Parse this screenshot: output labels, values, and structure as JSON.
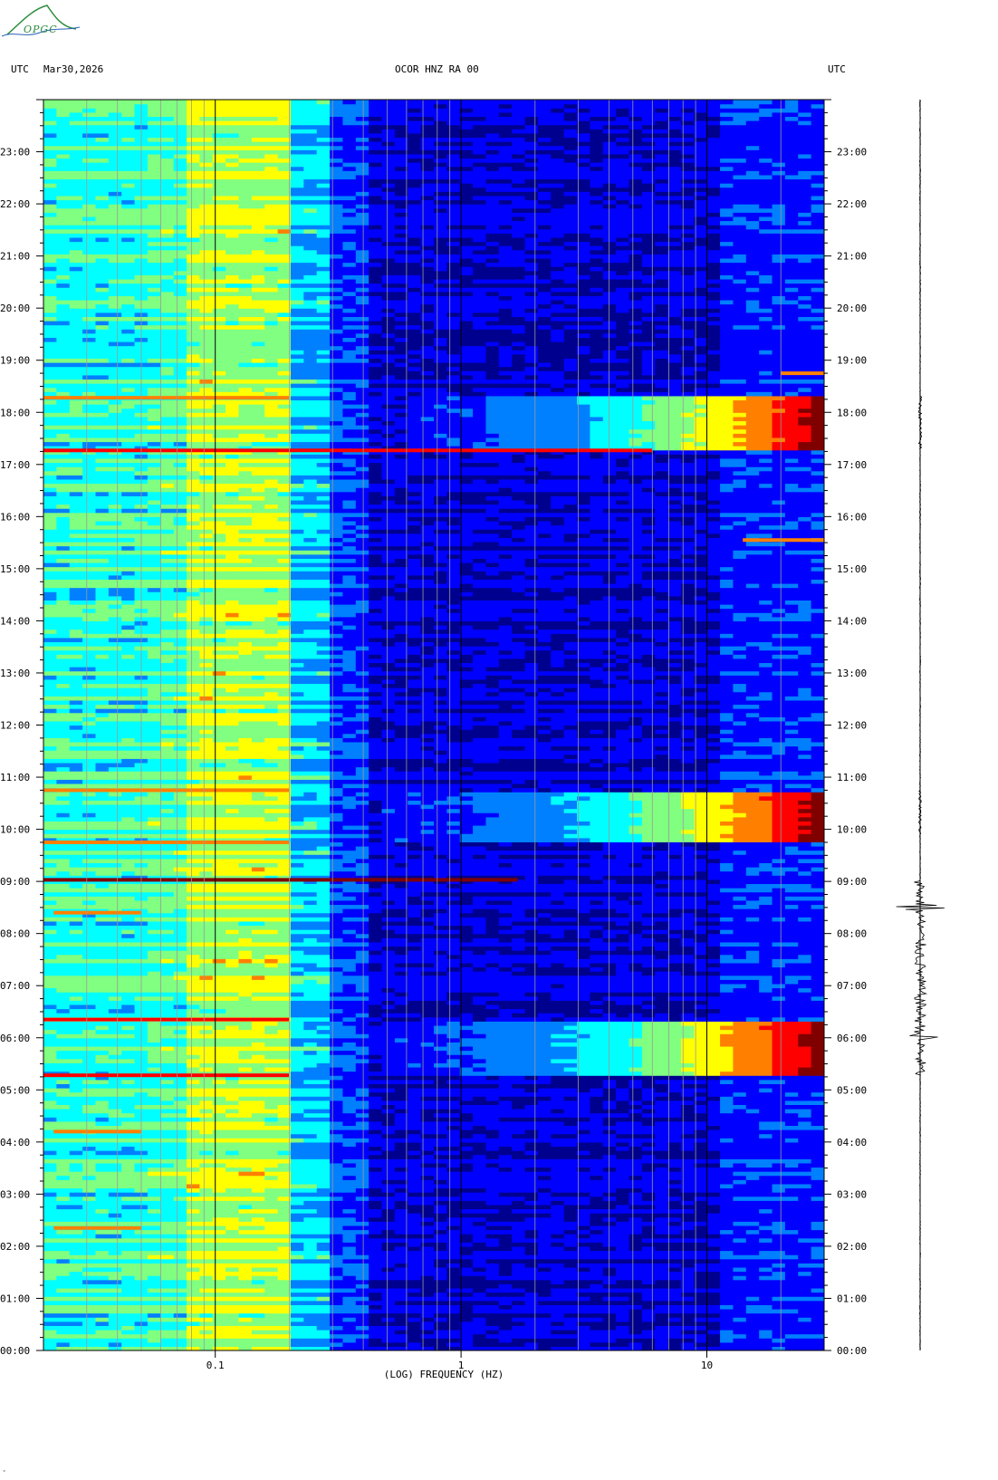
{
  "header": {
    "left_label": "UTC",
    "date": "Mar30,2026",
    "station": "OCOR HNZ RA 00",
    "right_label": "UTC"
  },
  "logo": {
    "text": "OPGC",
    "colors": {
      "arc": "#2a8c3a",
      "wave": "#2a5fb8"
    }
  },
  "stray_mark": "ᵐ",
  "chart_data": {
    "type": "heatmap",
    "xlabel": "(LOG) FREQUENCY (HZ)",
    "x_scale": "log",
    "xlim": [
      0.02,
      30
    ],
    "x_ticks": [
      {
        "value": 0.1,
        "label": "0.1"
      },
      {
        "value": 1,
        "label": "1"
      },
      {
        "value": 10,
        "label": "10"
      }
    ],
    "y_unit": "UTC hour",
    "ylim": [
      0,
      24
    ],
    "y_ticks": [
      "00:00",
      "01:00",
      "02:00",
      "03:00",
      "04:00",
      "05:00",
      "06:00",
      "07:00",
      "08:00",
      "09:00",
      "10:00",
      "11:00",
      "12:00",
      "13:00",
      "14:00",
      "15:00",
      "16:00",
      "17:00",
      "18:00",
      "19:00",
      "20:00",
      "21:00",
      "22:00",
      "23:00"
    ],
    "colormap": [
      "#00008f",
      "#0000ff",
      "#0080ff",
      "#00ffff",
      "#80ff80",
      "#ffff00",
      "#ff8000",
      "#ff0000",
      "#800000"
    ],
    "background_level": {
      "description_bands": [
        {
          "f0": 0.02,
          "f1": 0.05,
          "level": 0.42
        },
        {
          "f0": 0.05,
          "f1": 0.08,
          "level": 0.45
        },
        {
          "f0": 0.08,
          "f1": 0.2,
          "level": 0.55
        },
        {
          "f0": 0.2,
          "f1": 0.3,
          "level": 0.35
        },
        {
          "f0": 0.3,
          "f1": 0.4,
          "level": 0.22
        },
        {
          "f0": 0.4,
          "f1": 12,
          "level": 0.12
        },
        {
          "f0": 12,
          "f1": 30,
          "level": 0.2
        }
      ]
    },
    "events": [
      {
        "t0": 5.28,
        "t1": 6.35,
        "f_start": 0.5,
        "peak": 0.95
      },
      {
        "t0": 9.75,
        "t1": 10.75,
        "f_start": 0.5,
        "peak": 0.95
      },
      {
        "t0": 17.28,
        "t1": 18.3,
        "f_start": 0.6,
        "peak": 0.95
      }
    ],
    "lines": [
      {
        "t": 9.03,
        "f0": 0.02,
        "f1": 1.7,
        "level": 0.95
      },
      {
        "t": 17.27,
        "f0": 0.02,
        "f1": 6,
        "level": 0.8
      },
      {
        "t": 18.28,
        "f0": 0.02,
        "f1": 0.2,
        "level": 0.7
      },
      {
        "t": 5.28,
        "f0": 0.02,
        "f1": 0.2,
        "level": 0.85
      },
      {
        "t": 6.35,
        "f0": 0.02,
        "f1": 0.2,
        "level": 0.8
      },
      {
        "t": 9.75,
        "f0": 0.02,
        "f1": 0.2,
        "level": 0.75
      },
      {
        "t": 10.75,
        "f0": 0.02,
        "f1": 0.2,
        "level": 0.75
      },
      {
        "t": 4.2,
        "f0": 0.022,
        "f1": 0.05,
        "level": 0.75
      },
      {
        "t": 2.35,
        "f0": 0.022,
        "f1": 0.05,
        "level": 0.7
      },
      {
        "t": 8.4,
        "f0": 0.022,
        "f1": 0.05,
        "level": 0.7
      },
      {
        "t": 15.55,
        "f0": 14,
        "f1": 30,
        "level": 0.7
      },
      {
        "t": 18.75,
        "f0": 20,
        "f1": 30,
        "level": 0.7
      }
    ],
    "trace": {
      "bursts": [
        {
          "t0": 17.3,
          "t1": 18.3,
          "amp": 0.15
        },
        {
          "t0": 9.9,
          "t1": 10.8,
          "amp": 0.12
        },
        {
          "t0": 5.3,
          "t1": 9.0,
          "amp": 0.55
        },
        {
          "t0": 8.5,
          "t1": 8.5,
          "amp": 1.0
        },
        {
          "t0": 6.0,
          "t1": 6.0,
          "amp": 0.7
        }
      ]
    }
  }
}
